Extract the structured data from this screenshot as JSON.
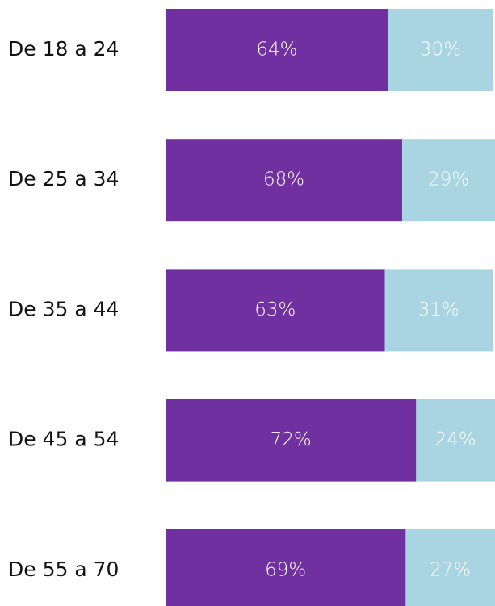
{
  "chart_data": {
    "type": "bar",
    "orientation": "horizontal",
    "stacked": true,
    "categories": [
      "De 18 a 24",
      "De 25 a 34",
      "De 35 a 44",
      "De 45 a 54",
      "De 55 a 70"
    ],
    "series": [
      {
        "color": "#7030a0",
        "values": [
          64,
          68,
          63,
          72,
          69
        ],
        "value_labels": [
          "64%",
          "68%",
          "63%",
          "72%",
          "69%"
        ]
      },
      {
        "color": "#a9d5e3",
        "values": [
          30,
          29,
          31,
          24,
          27
        ],
        "value_labels": [
          "30%",
          "29%",
          "31%",
          "24%",
          "27%"
        ]
      }
    ]
  }
}
